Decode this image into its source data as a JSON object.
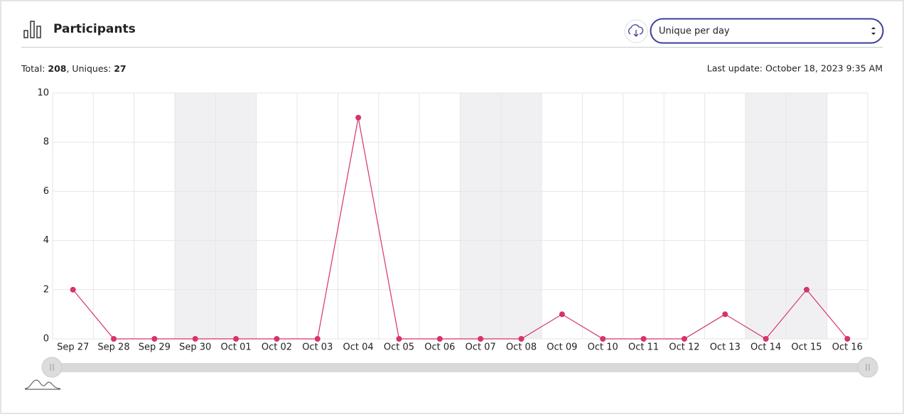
{
  "header": {
    "title": "Participants",
    "select_value": "Unique per day"
  },
  "summary": {
    "total_label": "Total:",
    "total": 208,
    "uniques_label": ", Uniques:",
    "uniques": 27
  },
  "last_update": "Last update: October 18, 2023 9:35 AM",
  "chart_data": {
    "type": "line",
    "categories": [
      "Sep 27",
      "Sep 28",
      "Sep 29",
      "Sep 30",
      "Oct 01",
      "Oct 02",
      "Oct 03",
      "Oct 04",
      "Oct 05",
      "Oct 06",
      "Oct 07",
      "Oct 08",
      "Oct 09",
      "Oct 10",
      "Oct 11",
      "Oct 12",
      "Oct 13",
      "Oct 14",
      "Oct 15",
      "Oct 16"
    ],
    "values": [
      2,
      0,
      0,
      0,
      0,
      0,
      0,
      9,
      0,
      0,
      0,
      0,
      1,
      0,
      0,
      0,
      1,
      0,
      2,
      0
    ],
    "color": "#d6336c",
    "ylim": [
      0,
      10
    ],
    "yticks": [
      0,
      2,
      4,
      6,
      8,
      10
    ],
    "grid": true,
    "shaded_categories": [
      "Sep 30",
      "Oct 01",
      "Oct 07",
      "Oct 08",
      "Oct 14",
      "Oct 15"
    ]
  }
}
